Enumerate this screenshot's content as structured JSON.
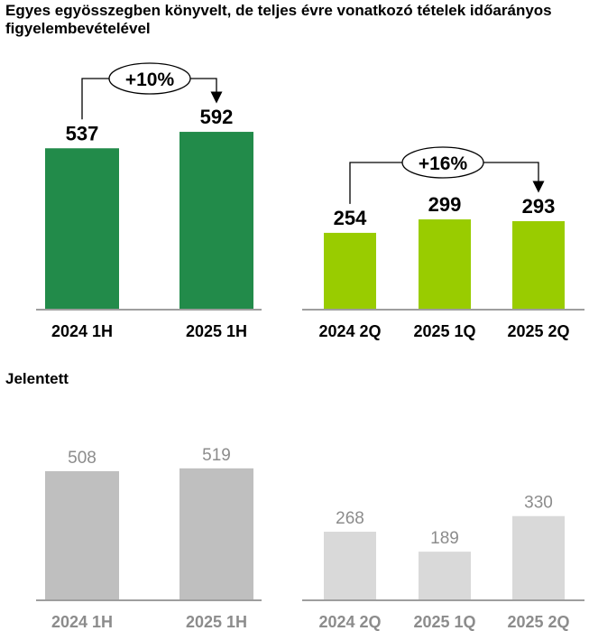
{
  "title": "Egyes egyösszegben könyvelt, de teljes évre vonatkozó tételek időarányos figyelembevételével",
  "subtitle": "Jelentett",
  "colors": {
    "dark_green": "#228B4A",
    "light_green": "#99CC00",
    "gray_dark": "#BFBFBF",
    "gray_light": "#D9D9D9",
    "label_gray": "#8C8C8C"
  },
  "chart_data": [
    {
      "type": "bar",
      "categories": [
        "2024 1H",
        "2025 1H"
      ],
      "values": [
        537,
        592
      ],
      "title": "",
      "annotation": "+10%"
    },
    {
      "type": "bar",
      "categories": [
        "2024 2Q",
        "2025 1Q",
        "2025 2Q"
      ],
      "values": [
        254,
        299,
        293
      ],
      "title": "",
      "annotation": "+16%"
    },
    {
      "type": "bar",
      "categories": [
        "2024 1H",
        "2025 1H"
      ],
      "values": [
        508,
        519
      ],
      "title": "Jelentett"
    },
    {
      "type": "bar",
      "categories": [
        "2024 2Q",
        "2025 1Q",
        "2025 2Q"
      ],
      "values": [
        268,
        189,
        330
      ],
      "title": "Jelentett"
    }
  ]
}
